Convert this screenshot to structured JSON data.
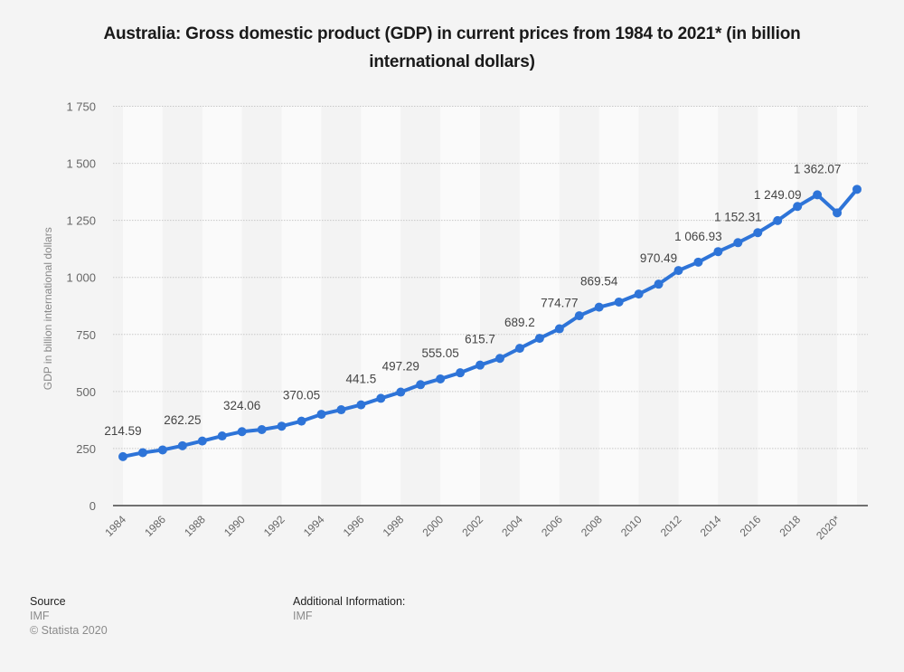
{
  "title": "Australia: Gross domestic product (GDP) in current prices from 1984 to 2021* (in billion international dollars)",
  "footer": {
    "source_heading": "Source",
    "source_value": "IMF",
    "copyright": "© Statista 2020",
    "additional_heading": "Additional Information:",
    "additional_value": "IMF"
  },
  "colors": {
    "line": "#2e74d8",
    "background": "#f4f4f4",
    "stripe_light": "#fafafa",
    "stripe_dark": "#f3f3f3"
  },
  "chart_data": {
    "type": "line",
    "title": "Australia: Gross domestic product (GDP) in current prices from 1984 to 2021* (in billion international dollars)",
    "xlabel": "",
    "ylabel": "GDP in billion international dollars",
    "ylim": [
      0,
      1750
    ],
    "yticks": [
      0,
      250,
      500,
      750,
      1000,
      1250,
      1500,
      1750
    ],
    "ytick_labels": [
      "0",
      "250",
      "500",
      "750",
      "1 000",
      "1 250",
      "1 500",
      "1 750"
    ],
    "x": [
      1984,
      1985,
      1986,
      1987,
      1988,
      1989,
      1990,
      1991,
      1992,
      1993,
      1994,
      1995,
      1996,
      1997,
      1998,
      1999,
      2000,
      2001,
      2002,
      2003,
      2004,
      2005,
      2006,
      2007,
      2008,
      2009,
      2010,
      2011,
      2012,
      2013,
      2014,
      2015,
      2016,
      2017,
      2018,
      2019,
      2020,
      2021
    ],
    "xtick_labels": [
      "1984",
      "1986",
      "1988",
      "1990",
      "1992",
      "1994",
      "1996",
      "1998",
      "2000",
      "2002",
      "2004",
      "2006",
      "2008",
      "2010",
      "2012",
      "2014",
      "2016",
      "2018",
      "2020*"
    ],
    "xtick_years": [
      1984,
      1986,
      1988,
      1990,
      1992,
      1994,
      1996,
      1998,
      2000,
      2002,
      2004,
      2006,
      2008,
      2010,
      2012,
      2014,
      2016,
      2018,
      2020
    ],
    "grid": true,
    "legend": "none",
    "series": [
      {
        "name": "GDP",
        "values": [
          214.59,
          232,
          244,
          262.25,
          283,
          305,
          324.06,
          333,
          348,
          370.05,
          400,
          420,
          441.5,
          470,
          497.29,
          530,
          555.05,
          582,
          615.7,
          645,
          689.2,
          733,
          774.77,
          832,
          869.54,
          892,
          927,
          970.49,
          1030,
          1066.93,
          1113,
          1152.31,
          1196,
          1249.09,
          1311,
          1362.07,
          1283,
          1386
        ]
      }
    ],
    "data_labels": [
      {
        "year": 1984,
        "text": "214.59"
      },
      {
        "year": 1987,
        "text": "262.25"
      },
      {
        "year": 1990,
        "text": "324.06"
      },
      {
        "year": 1993,
        "text": "370.05"
      },
      {
        "year": 1996,
        "text": "441.5"
      },
      {
        "year": 1998,
        "text": "497.29"
      },
      {
        "year": 2000,
        "text": "555.05"
      },
      {
        "year": 2002,
        "text": "615.7"
      },
      {
        "year": 2004,
        "text": "689.2"
      },
      {
        "year": 2006,
        "text": "774.77"
      },
      {
        "year": 2008,
        "text": "869.54"
      },
      {
        "year": 2011,
        "text": "970.49"
      },
      {
        "year": 2013,
        "text": "1 066.93"
      },
      {
        "year": 2015,
        "text": "1 152.31"
      },
      {
        "year": 2017,
        "text": "1 249.09"
      },
      {
        "year": 2019,
        "text": "1 362.07"
      }
    ]
  }
}
